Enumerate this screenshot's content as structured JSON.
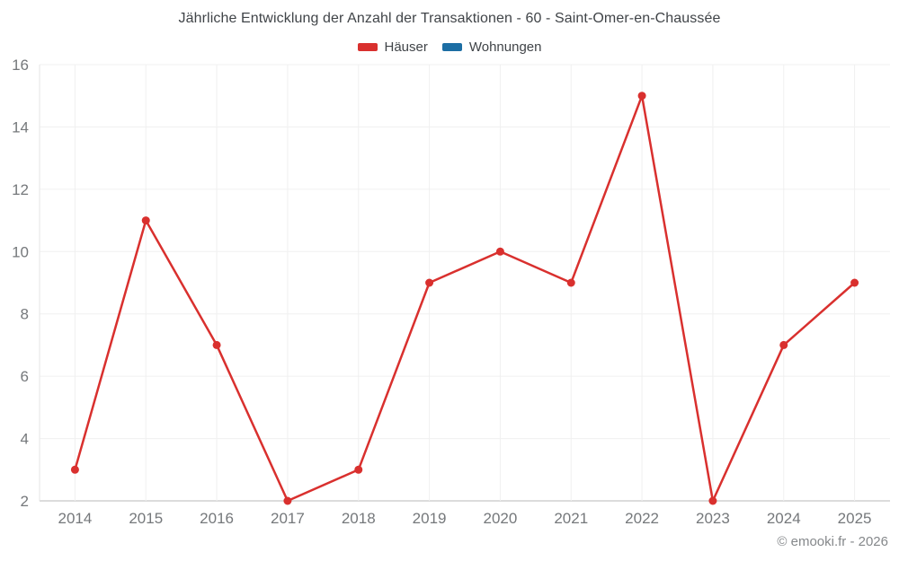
{
  "title": "Jährliche Entwicklung der Anzahl der Transaktionen - 60 - Saint-Omer-en-Chaussée",
  "copyright": "© emooki.fr - 2026",
  "colors": {
    "hauser": "#d9302e",
    "wohnungen": "#1c6ea4",
    "grid": "#f0f0f0",
    "axis_line": "#d0d0d0",
    "left_axis_line": "#e6e6e6",
    "tick_text": "#75787b",
    "title_text": "#404448"
  },
  "chart_data": {
    "type": "line",
    "title": "Jährliche Entwicklung der Anzahl der Transaktionen - 60 - Saint-Omer-en-Chaussée",
    "categories": [
      "2014",
      "2015",
      "2016",
      "2017",
      "2018",
      "2019",
      "2020",
      "2021",
      "2022",
      "2023",
      "2024",
      "2025"
    ],
    "series": [
      {
        "name": "Häuser",
        "color": "#d9302e",
        "values": [
          3,
          11,
          7,
          2,
          3,
          9,
          10,
          9,
          15,
          2,
          7,
          9
        ]
      },
      {
        "name": "Wohnungen",
        "color": "#1c6ea4",
        "values": []
      }
    ],
    "xlabel": "",
    "ylabel": "",
    "ylim": [
      2,
      16
    ],
    "yticks": [
      2,
      4,
      6,
      8,
      10,
      12,
      14,
      16
    ],
    "grid": true,
    "legend_position": "top"
  }
}
